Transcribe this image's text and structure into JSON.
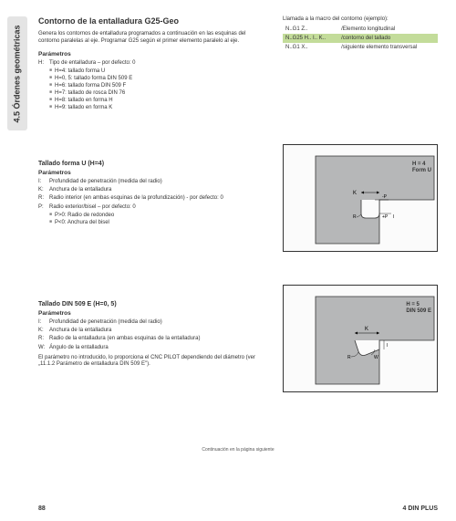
{
  "sidebar": {
    "title": "4.5 Órdenes geométricas"
  },
  "header": {
    "title": "Contorno de la entalladura G25-Geo",
    "intro": "Genera los contornos de entalladura programados a continuación en las esquinas del contorno paralelas al eje. Programar G25 según el primer elemento paralelo al eje."
  },
  "call_block": {
    "label": "Llamada a la macro del contorno (ejemplo):",
    "rows": [
      {
        "c1": "N..G1 Z..",
        "c2": "/Elemento longitudinal",
        "hl": false
      },
      {
        "c1": "N..G25 H.. I.. K..",
        "c2": "/contorno del tallado",
        "hl": true
      },
      {
        "c1": "N..G1 X..",
        "c2": "/siguiente elemento transversal",
        "hl": false
      }
    ]
  },
  "params_main": {
    "label": "Parámetros",
    "rows": [
      {
        "k": "H:",
        "v": "Tipo de entalladura – por defecto: 0"
      }
    ],
    "sub": [
      "H=4: tallado forma U",
      "H=0, 5: tallado forma DIN 509 E",
      "H=6: tallado forma DIN 509 F",
      "H=7: tallado de rosca DIN 76",
      "H=8: tallado en forma H",
      "H=9: tallado en forma K"
    ]
  },
  "section_u": {
    "title": "Tallado forma U (H=4)",
    "label": "Parámetros",
    "rows": [
      {
        "k": "I:",
        "v": "Profundidad de penetración (medida del radio)"
      },
      {
        "k": "K:",
        "v": "Anchura de la entalladura"
      },
      {
        "k": "R:",
        "v": "Radio interior (en ambas esquinas de la profundización) - por defecto: 0"
      },
      {
        "k": "P:",
        "v": "Radio exterior/bisel – por defecto: 0"
      }
    ],
    "sub": [
      "P>0: Radio de redondeo",
      "P<0: Anchura del bisel"
    ],
    "diagram": {
      "title1": "H = 4",
      "title2": "Form U"
    }
  },
  "section_e": {
    "title": "Tallado DIN 509 E (H=0, 5)",
    "label": "Parámetros",
    "rows": [
      {
        "k": "I:",
        "v": "Profundidad de penetración (medida del radio)"
      },
      {
        "k": "K:",
        "v": "Anchura de la entalladura"
      },
      {
        "k": "R:",
        "v": "Radio de la entalladura (en ambas esquinas de la entalladura)"
      },
      {
        "k": "W:",
        "v": "Ángulo de la entalladura"
      }
    ],
    "note": "El parámetro no introducido, lo proporciona el CNC PILOT dependiendo del diámetro (ver „11.1.2 Parámetro de entalladura DIN 509 E\").",
    "diagram": {
      "title1": "H = 5",
      "title2": "DIN 509 E"
    }
  },
  "continuation": "Continuación en la página siguiente",
  "footer": {
    "page": "88",
    "ref": "4 DIN PLUS"
  }
}
